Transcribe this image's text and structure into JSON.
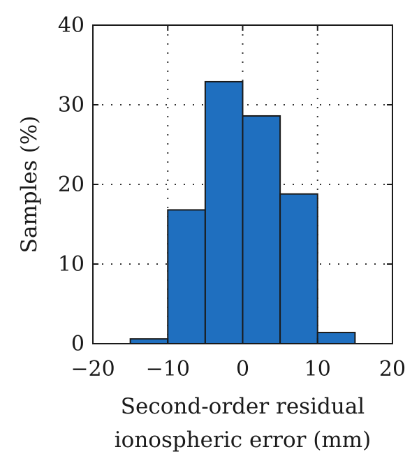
{
  "chart_data": {
    "type": "bar",
    "title": "",
    "xlabel": [
      "Second-order residual",
      "ionospheric error (mm)"
    ],
    "ylabel": "Samples (%)",
    "xlim": [
      -20,
      20
    ],
    "ylim": [
      0,
      40
    ],
    "xticks": [
      -20,
      -10,
      0,
      10,
      20
    ],
    "xtick_labels": [
      "−20",
      "−10",
      "0",
      "10",
      "20"
    ],
    "yticks": [
      0,
      10,
      20,
      30,
      40
    ],
    "ytick_labels": [
      "0",
      "10",
      "20",
      "30",
      "40"
    ],
    "grid": true,
    "bins": [
      {
        "x0": -15,
        "x1": -10,
        "value": 0.6
      },
      {
        "x0": -10,
        "x1": -5,
        "value": 16.8
      },
      {
        "x0": -5,
        "x1": 0,
        "value": 32.9
      },
      {
        "x0": 0,
        "x1": 5,
        "value": 28.6
      },
      {
        "x0": 5,
        "x1": 10,
        "value": 18.8
      },
      {
        "x0": 10,
        "x1": 15,
        "value": 1.4
      }
    ],
    "bar_color": "#1f6fbf",
    "edge_color": "#1a1a1a"
  }
}
